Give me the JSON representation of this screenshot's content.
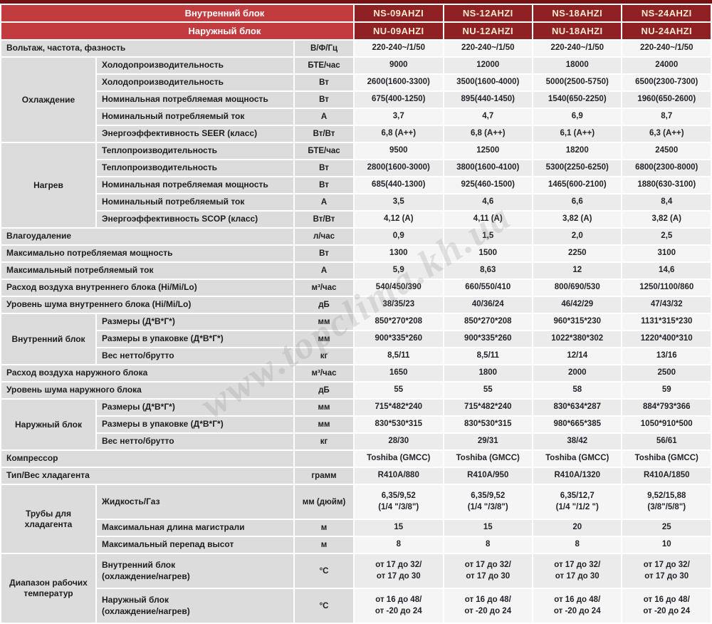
{
  "watermark": "www.topclima.kh.ua",
  "colors": {
    "top_strip": "#741114",
    "header_red": "#c23b3f",
    "model_dark_red": "#8f2024",
    "label_gray": "#dcdcdc",
    "value_light": "#f5f5f5",
    "value_dark": "#ebebeb"
  },
  "table": {
    "header": {
      "indoor_label": "Внутренний блок",
      "outdoor_label": "Наружный блок",
      "indoor_models": [
        "NS-09AHZI",
        "NS-12AHZI",
        "NS-18AHZI",
        "NS-24AHZI"
      ],
      "outdoor_models": [
        "NU-09AHZI",
        "NU-12AHZI",
        "NU-18AHZI",
        "NU-24AHZI"
      ]
    },
    "rows": [
      {
        "label": "Вольтаж, частота, фазность",
        "unit": "В/Ф/Гц",
        "values": [
          "220-240~/1/50",
          "220-240~/1/50",
          "220-240~/1/50",
          "220-240~/1/50"
        ]
      },
      {
        "group": {
          "label": "Охлаждение",
          "rowspan": 5
        },
        "label": "Холодопроизводительность",
        "unit": "БТЕ/час",
        "values": [
          "9000",
          "12000",
          "18000",
          "24000"
        ]
      },
      {
        "in_group": true,
        "label": "Холодопроизводительность",
        "unit": "Вт",
        "values": [
          "2600(1600-3300)",
          "3500(1600-4000)",
          "5000(2500-5750)",
          "6500(2300-7300)"
        ]
      },
      {
        "in_group": true,
        "label": "Номинальная потребляемая мощность",
        "unit": "Вт",
        "values": [
          "675(400-1250)",
          "895(440-1450)",
          "1540(650-2250)",
          "1960(650-2600)"
        ]
      },
      {
        "in_group": true,
        "label": "Номинальный потребляемый ток",
        "unit": "А",
        "values": [
          "3,7",
          "4,7",
          "6,9",
          "8,7"
        ]
      },
      {
        "in_group": true,
        "label": "Энергоэффективность SEER (класс)",
        "unit": "Вт/Вт",
        "values": [
          "6,8 (A++)",
          "6,8 (A++)",
          "6,1 (A++)",
          "6,3 (A++)"
        ]
      },
      {
        "group": {
          "label": "Нагрев",
          "rowspan": 5
        },
        "label": "Теплопроизводительность",
        "unit": "БТЕ/час",
        "values": [
          "9500",
          "12500",
          "18200",
          "24500"
        ]
      },
      {
        "in_group": true,
        "label": "Теплопроизводительность",
        "unit": "Вт",
        "values": [
          "2800(1600-3000)",
          "3800(1600-4100)",
          "5300(2250-6250)",
          "6800(2300-8000)"
        ]
      },
      {
        "in_group": true,
        "label": "Номинальная потребляемая мощность",
        "unit": "Вт",
        "values": [
          "685(440-1300)",
          "925(460-1500)",
          "1465(600-2100)",
          "1880(630-3100)"
        ]
      },
      {
        "in_group": true,
        "label": "Номинальный потребляемый ток",
        "unit": "А",
        "values": [
          "3,5",
          "4,6",
          "6,6",
          "8,4"
        ]
      },
      {
        "in_group": true,
        "label": "Энергоэффективность SCOP (класс)",
        "unit": "Вт/Вт",
        "values": [
          "4,12 (A)",
          "4,11 (A)",
          "3,82 (A)",
          "3,82 (A)"
        ]
      },
      {
        "label": "Влагоудаление",
        "unit": "л/час",
        "values": [
          "0,9",
          "1,5",
          "2,0",
          "2,5"
        ]
      },
      {
        "label": "Максимально потребляемая мощность",
        "unit": "Вт",
        "values": [
          "1300",
          "1500",
          "2250",
          "3100"
        ]
      },
      {
        "label": "Максимальный потребляемый ток",
        "unit": "А",
        "values": [
          "5,9",
          "8,63",
          "12",
          "14,6"
        ]
      },
      {
        "label": "Расход воздуха внутреннего блока (Hi/Mi/Lo)",
        "unit": "м³/час",
        "values": [
          "540/450/390",
          "660/550/410",
          "800/690/530",
          "1250/1100/860"
        ]
      },
      {
        "label": "Уровень шума внутреннего блока (Hi/Mi/Lo)",
        "unit": "дБ",
        "values": [
          "38/35/23",
          "40/36/24",
          "46/42/29",
          "47/43/32"
        ]
      },
      {
        "group": {
          "label": "Внутренний блок",
          "rowspan": 3
        },
        "label": "Размеры (Д*В*Г*)",
        "unit": "мм",
        "values": [
          "850*270*208",
          "850*270*208",
          "960*315*230",
          "1131*315*230"
        ]
      },
      {
        "in_group": true,
        "label": "Размеры в упаковке (Д*В*Г*)",
        "unit": "мм",
        "values": [
          "900*335*260",
          "900*335*260",
          "1022*380*302",
          "1220*400*310"
        ]
      },
      {
        "in_group": true,
        "label": "Вес нетто/брутто",
        "unit": "кг",
        "values": [
          "8,5/11",
          "8,5/11",
          "12/14",
          "13/16"
        ]
      },
      {
        "label": "Расход воздуха наружного блока",
        "unit": "м³/час",
        "values": [
          "1650",
          "1800",
          "2000",
          "2500"
        ]
      },
      {
        "label": "Уровень шума наружного блока",
        "unit": "дБ",
        "values": [
          "55",
          "55",
          "58",
          "59"
        ]
      },
      {
        "group": {
          "label": "Наружный блок",
          "rowspan": 3
        },
        "label": "Размеры (Д*В*Г*)",
        "unit": "мм",
        "values": [
          "715*482*240",
          "715*482*240",
          "830*634*287",
          "884*793*366"
        ]
      },
      {
        "in_group": true,
        "label": "Размеры в упаковке (Д*В*Г*)",
        "unit": "мм",
        "values": [
          "830*530*315",
          "830*530*315",
          "980*665*385",
          "1050*910*500"
        ]
      },
      {
        "in_group": true,
        "label": "Вес нетто/брутто",
        "unit": "кг",
        "values": [
          "28/30",
          "29/31",
          "38/42",
          "56/61"
        ]
      },
      {
        "label": "Компрессор",
        "unit": "",
        "values": [
          "Toshiba (GMCC)",
          "Toshiba (GMCC)",
          "Toshiba (GMCC)",
          "Toshiba (GMCC)"
        ]
      },
      {
        "label": "Тип/Вес хладагента",
        "unit": "грамм",
        "values": [
          "R410A/880",
          "R410A/950",
          "R410A/1320",
          "R410A/1850"
        ]
      },
      {
        "group": {
          "label": "Трубы для хладагента",
          "rowspan": 3
        },
        "label": "Жидкость/Газ",
        "unit": "мм (дюйм)",
        "tall": true,
        "values": [
          "6,35/9,52\n(1/4 \"/3/8\")",
          "6,35/9,52\n(1/4 \"/3/8\")",
          "6,35/12,7\n(1/4 \"/1/2 \")",
          "9,52/15,88\n(3/8\"/5/8\")"
        ]
      },
      {
        "in_group": true,
        "label": "Максимальная длина магистрали",
        "unit": "м",
        "values": [
          "15",
          "15",
          "20",
          "25"
        ]
      },
      {
        "in_group": true,
        "label": "Максимальный перепад высот",
        "unit": "м",
        "values": [
          "8",
          "8",
          "8",
          "10"
        ]
      },
      {
        "group": {
          "label": "Диапазон рабочих температур",
          "rowspan": 2
        },
        "label": "Внутренний блок\n(охлаждение/нагрев)",
        "unit": "°С",
        "tall": true,
        "values": [
          "от 17 до 32/\nот 17 до 30",
          "от 17 до 32/\nот 17 до 30",
          "от 17 до 32/\nот 17 до 30",
          "от 17 до 32/\nот 17 до 30"
        ]
      },
      {
        "in_group": true,
        "label": "Наружный блок\n(охлаждение/нагрев)",
        "unit": "°С",
        "tall": true,
        "values": [
          "от 16 до 48/\nот -20 до 24",
          "от 16 до 48/\nот -20 до 24",
          "от 16 до 48/\nот -20 до 24",
          "от 16 до 48/\nот -20 до 24"
        ]
      }
    ]
  }
}
